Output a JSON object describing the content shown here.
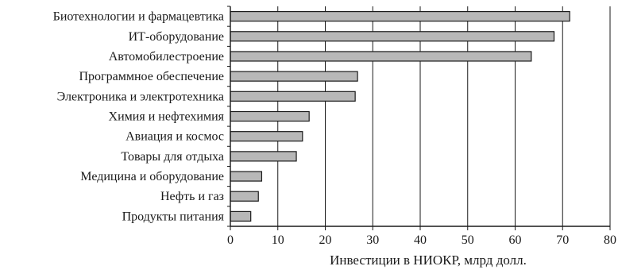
{
  "chart_data": {
    "type": "bar",
    "orientation": "horizontal",
    "categories": [
      "Биотехнологии и фармацевтика",
      "ИТ-оборудование",
      "Автомобилестроение",
      "Программное обеспечение",
      "Электроника и электротехника",
      "Химия и нефтехимия",
      "Авиация и космос",
      "Товары для отдыха",
      "Медицина и оборудование",
      "Нефть и газ",
      "Продукты питания"
    ],
    "values": [
      71.5,
      68.2,
      63.4,
      26.8,
      26.3,
      16.6,
      15.2,
      13.9,
      6.6,
      5.9,
      4.3
    ],
    "xlabel": "Инвестиции в НИОКР, млрд долл.",
    "xlim": [
      0,
      80
    ],
    "xticks": [
      0,
      10,
      20,
      30,
      40,
      50,
      60,
      70,
      80
    ],
    "grid": "vertical",
    "bar_color": "#b8b8b8",
    "bar_edge_color": "#1a1a1a"
  }
}
